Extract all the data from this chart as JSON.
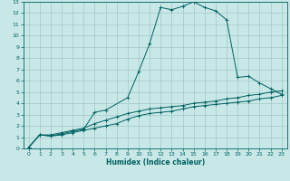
{
  "xlabel": "Humidex (Indice chaleur)",
  "bg_color": "#c8e8e8",
  "grid_color": "#a0c8c8",
  "line_color": "#006060",
  "xlim": [
    -0.5,
    23.5
  ],
  "ylim": [
    0,
    13
  ],
  "xticks": [
    0,
    1,
    2,
    3,
    4,
    5,
    6,
    7,
    8,
    9,
    10,
    11,
    12,
    13,
    14,
    15,
    16,
    17,
    18,
    19,
    20,
    21,
    22,
    23
  ],
  "yticks": [
    0,
    1,
    2,
    3,
    4,
    5,
    6,
    7,
    8,
    9,
    10,
    11,
    12,
    13
  ],
  "line1_x": [
    0,
    1,
    2,
    3,
    4,
    5,
    6,
    7,
    9,
    10,
    11,
    12,
    13,
    14,
    15,
    16,
    17,
    18,
    19,
    20,
    21,
    22,
    23
  ],
  "line1_y": [
    0.1,
    1.2,
    1.1,
    1.3,
    1.5,
    1.7,
    3.2,
    3.4,
    4.5,
    6.8,
    9.3,
    12.5,
    12.3,
    12.6,
    13.0,
    12.5,
    12.2,
    11.4,
    6.3,
    6.4,
    5.8,
    5.3,
    4.8
  ],
  "line2_x": [
    0,
    1,
    2,
    3,
    4,
    5,
    6,
    7,
    8,
    9,
    10,
    11,
    12,
    13,
    14,
    15,
    16,
    17,
    18,
    19,
    20,
    21,
    22,
    23
  ],
  "line2_y": [
    0.1,
    1.2,
    1.1,
    1.2,
    1.4,
    1.6,
    1.8,
    2.0,
    2.2,
    2.6,
    2.9,
    3.1,
    3.2,
    3.3,
    3.5,
    3.7,
    3.8,
    3.9,
    4.0,
    4.1,
    4.2,
    4.4,
    4.5,
    4.7
  ],
  "line3_x": [
    0,
    1,
    2,
    3,
    4,
    5,
    6,
    7,
    8,
    9,
    10,
    11,
    12,
    13,
    14,
    15,
    16,
    17,
    18,
    19,
    20,
    21,
    22,
    23
  ],
  "line3_y": [
    0.1,
    1.2,
    1.2,
    1.4,
    1.6,
    1.8,
    2.2,
    2.5,
    2.8,
    3.1,
    3.3,
    3.5,
    3.6,
    3.7,
    3.8,
    4.0,
    4.1,
    4.2,
    4.4,
    4.5,
    4.7,
    4.8,
    5.0,
    5.1
  ],
  "tick_fontsize": 4.5,
  "xlabel_fontsize": 5.5,
  "linewidth": 0.7,
  "markersize": 2.5,
  "markeredgewidth": 0.6
}
